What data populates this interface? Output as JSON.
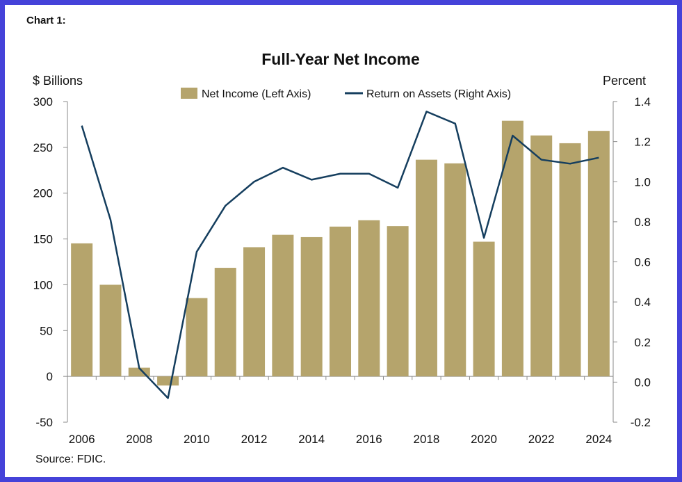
{
  "label": "Chart 1:",
  "source": "Source: FDIC.",
  "colors": {
    "frame": "#4542d9",
    "bar": "#b5a46c",
    "line": "#153e5e"
  },
  "chart_data": {
    "type": "bar",
    "title": "Full-Year Net Income",
    "ylabel_left": "$ Billions",
    "ylabel_right": "Percent",
    "x": [
      2006,
      2007,
      2008,
      2009,
      2010,
      2011,
      2012,
      2013,
      2014,
      2015,
      2016,
      2017,
      2018,
      2019,
      2020,
      2021,
      2022,
      2023,
      2024
    ],
    "x_tick_labels": [
      "2006",
      "2008",
      "2010",
      "2012",
      "2014",
      "2016",
      "2018",
      "2020",
      "2022",
      "2024"
    ],
    "ylim_left": [
      -50,
      300
    ],
    "ylim_right": [
      -0.2,
      1.4
    ],
    "y_ticks_left": [
      "-50",
      "0",
      "50",
      "100",
      "150",
      "200",
      "250",
      "300"
    ],
    "y_ticks_right": [
      "-0.2",
      "0.0",
      "0.2",
      "0.4",
      "0.6",
      "0.8",
      "1.0",
      "1.2",
      "1.4"
    ],
    "legend_position": "top-center",
    "series": [
      {
        "name": "Net Income (Left Axis)",
        "type": "bar",
        "axis": "left",
        "values": [
          145.2,
          100.0,
          9.5,
          -10.0,
          85.5,
          118.5,
          141.0,
          154.5,
          152.0,
          163.5,
          170.5,
          164.0,
          236.5,
          232.5,
          147.0,
          279.0,
          263.0,
          254.5,
          268.0
        ]
      },
      {
        "name": "Return on Assets (Right Axis)",
        "type": "line",
        "axis": "right",
        "values": [
          1.28,
          0.81,
          0.07,
          -0.08,
          0.65,
          0.88,
          1.0,
          1.07,
          1.01,
          1.04,
          1.04,
          0.97,
          1.35,
          1.29,
          0.72,
          1.23,
          1.11,
          1.09,
          1.12
        ]
      }
    ]
  }
}
